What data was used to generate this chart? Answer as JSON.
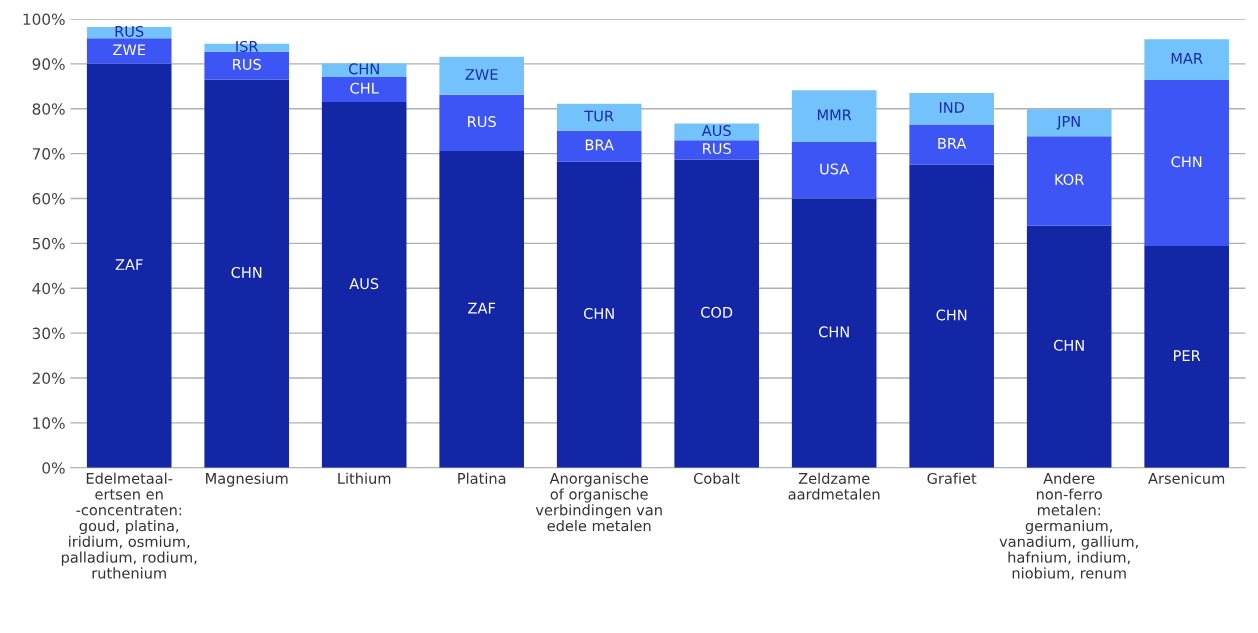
{
  "chart_data": {
    "type": "bar",
    "stacked": true,
    "categories": [
      "Edelmetaal-\nertsen en\n-concentraten:\ngoud, platina,\niridium, osmium,\npalladium, rodium,\nruthenium",
      "Magnesium",
      "Lithium",
      "Platina",
      "Anorganische\nof organische\nverbindingen van\nedele metalen",
      "Cobalt",
      "Zeldzame\naardmetalen",
      "Grafiet",
      "Andere\nnon-ferro\nmetalen:\ngermanium,\nvanadium, gallium,\nhafnium, indium,\nniobium, renum",
      "Arsenicum"
    ],
    "series": [
      {
        "color": "#1226a6",
        "values": [
          90.0,
          86.5,
          81.5,
          70.6,
          68.2,
          68.7,
          60.0,
          67.5,
          54.0,
          49.4
        ],
        "value_labels": [
          "ZAF",
          "CHN",
          "AUS",
          "ZAF",
          "CHN",
          "COD",
          "CHN",
          "CHN",
          "CHN",
          "PER"
        ]
      },
      {
        "color": "#3d55f5",
        "values": [
          5.7,
          6.2,
          5.6,
          12.5,
          6.9,
          4.3,
          12.6,
          9.0,
          19.9,
          37.0
        ],
        "value_labels": [
          "ZWE",
          "RUS",
          "CHL",
          "RUS",
          "BRA",
          "RUS",
          "USA",
          "BRA",
          "KOR",
          "CHN"
        ]
      },
      {
        "color": "#73c2fb",
        "values": [
          2.5,
          1.8,
          3.0,
          8.5,
          6.0,
          3.7,
          11.5,
          7.0,
          6.0,
          9.1
        ],
        "value_labels": [
          "RUS",
          "ISR",
          "CHN",
          "ZWE",
          "TUR",
          "AUS",
          "MMR",
          "IND",
          "JPN",
          "MAR"
        ]
      }
    ],
    "ylim": [
      0,
      100
    ],
    "yticks": [
      {
        "value": 0,
        "label": "0%"
      },
      {
        "value": 10,
        "label": "10%"
      },
      {
        "value": 20,
        "label": "20%"
      },
      {
        "value": 30,
        "label": "30%"
      },
      {
        "value": 40,
        "label": "40%"
      },
      {
        "value": 50,
        "label": "50%"
      },
      {
        "value": 60,
        "label": "60%"
      },
      {
        "value": 70,
        "label": "70%"
      },
      {
        "value": 80,
        "label": "80%"
      },
      {
        "value": 90,
        "label": "90%"
      },
      {
        "value": 100,
        "label": "100%"
      }
    ],
    "grid": "y"
  }
}
